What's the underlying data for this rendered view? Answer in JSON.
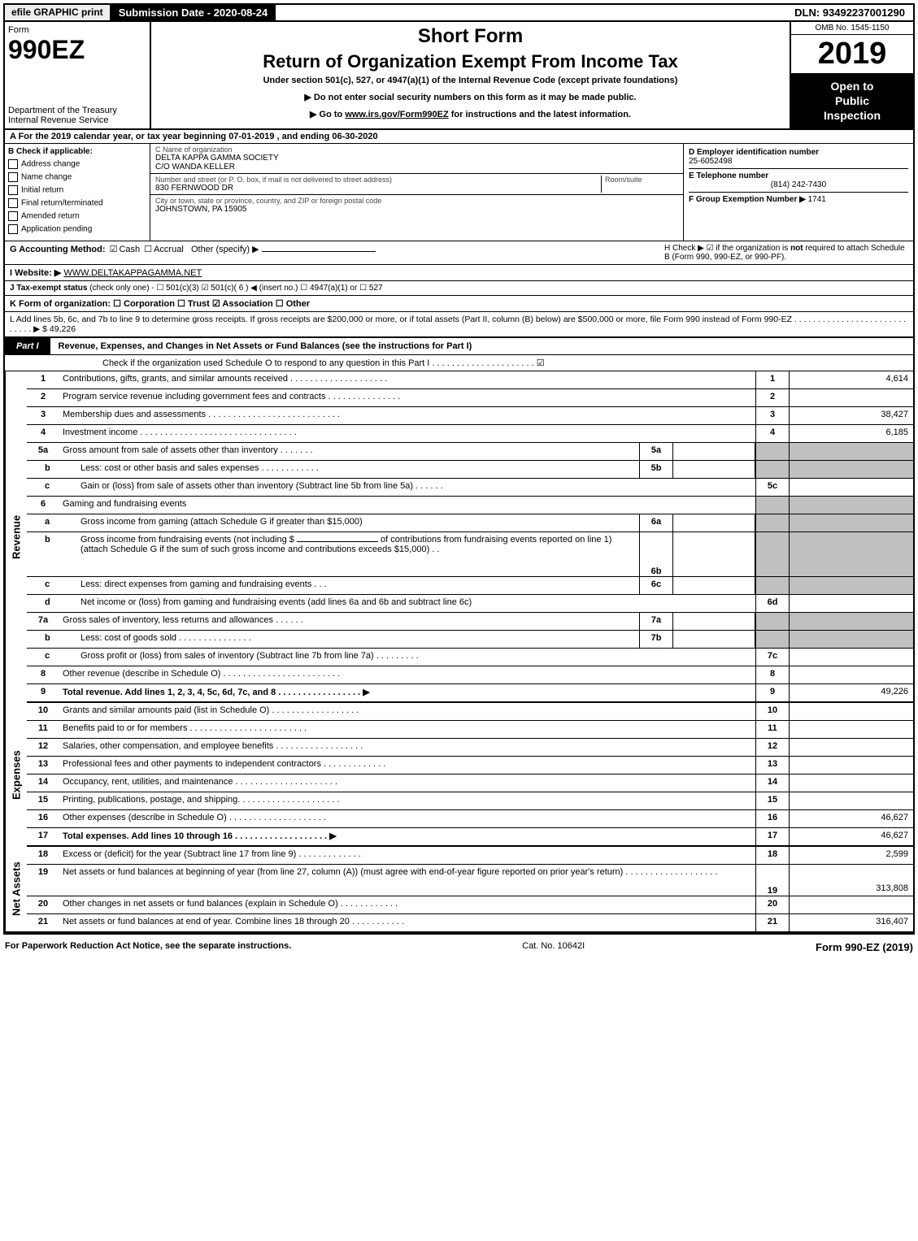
{
  "top": {
    "efile": "efile GRAPHIC print",
    "submission": "Submission Date - 2020-08-24",
    "dln": "DLN: 93492237001290"
  },
  "header": {
    "form_label": "Form",
    "form_number": "990EZ",
    "dept": "Department of the Treasury",
    "irs": "Internal Revenue Service",
    "title_short": "Short Form",
    "title_return": "Return of Organization Exempt From Income Tax",
    "under_section": "Under section 501(c), 527, or 4947(a)(1) of the Internal Revenue Code (except private foundations)",
    "instr1": "▶ Do not enter social security numbers on this form as it may be made public.",
    "instr2_prefix": "▶ Go to ",
    "instr2_link": "www.irs.gov/Form990EZ",
    "instr2_suffix": " for instructions and the latest information.",
    "omb": "OMB No. 1545-1150",
    "year": "2019",
    "open": "Open to",
    "public": "Public",
    "inspection": "Inspection"
  },
  "section_a": "A  For the 2019 calendar year, or tax year beginning 07-01-2019 , and ending 06-30-2020",
  "col_b": {
    "header": "B  Check if applicable:",
    "opts": [
      "Address change",
      "Name change",
      "Initial return",
      "Final return/terminated",
      "Amended return",
      "Application pending"
    ]
  },
  "col_c": {
    "name_lbl": "C Name of organization",
    "name1": "DELTA KAPPA GAMMA SOCIETY",
    "name2": "C/O WANDA KELLER",
    "street_lbl": "Number and street (or P. O. box, if mail is not delivered to street address)",
    "room_lbl": "Room/suite",
    "street": "830 FERNWOOD DR",
    "city_lbl": "City or town, state or province, country, and ZIP or foreign postal code",
    "city": "JOHNSTOWN, PA  15905"
  },
  "col_d": {
    "ein_lbl": "D Employer identification number",
    "ein": "25-6052498",
    "tel_lbl": "E Telephone number",
    "tel": "(814) 242-7430",
    "group_lbl": "F Group Exemption Number  ▶",
    "group": "1741"
  },
  "g": {
    "label": "G Accounting Method:",
    "cash": "Cash",
    "accrual": "Accrual",
    "other": "Other (specify) ▶"
  },
  "h": {
    "text1": "H  Check ▶ ☑  if the organization is ",
    "not": "not",
    "text2": " required to attach Schedule B (Form 990, 990-EZ, or 990-PF)."
  },
  "i": {
    "label": "I Website: ▶",
    "value": "WWW.DELTAKAPPAGAMMA.NET"
  },
  "j": {
    "label": "J Tax-exempt status",
    "rest": " (check only one) - ☐ 501(c)(3)  ☑ 501(c)( 6 ) ◀ (insert no.)  ☐ 4947(a)(1) or  ☐ 527"
  },
  "k": {
    "label": "K Form of organization:   ☐ Corporation    ☐ Trust    ☑ Association    ☐ Other",
    "underline": ""
  },
  "l": {
    "text": "L Add lines 5b, 6c, and 7b to line 9 to determine gross receipts. If gross receipts are $200,000 or more, or if total assets (Part II, column (B) below) are $500,000 or more, file Form 990 instead of Form 990-EZ   .   .   .   .   .   .   .   .   .   .   .   .   .   .   .   .   .   .   .   .   .   .   .   .   .   .   .   .   .   ▶ $ 49,226"
  },
  "part1": {
    "tab": "Part I",
    "title": "Revenue, Expenses, and Changes in Net Assets or Fund Balances (see the instructions for Part I)",
    "check": "Check if the organization used Schedule O to respond to any question in this Part I  .   .   .   .   .   .   .   .   .   .   .   .   .   .   .   .   .   .   .   .   .   ☑"
  },
  "sidebars": {
    "rev": "Revenue",
    "exp": "Expenses",
    "net": "Net Assets"
  },
  "rows": [
    {
      "n": "1",
      "desc": "Contributions, gifts, grants, and similar amounts received   .   .   .   .   .   .   .   .   .   .   .   .   .   .   .   .   .   .   .   .",
      "ln": "1",
      "val": "4,614"
    },
    {
      "n": "2",
      "desc": "Program service revenue including government fees and contracts    .   .   .   .   .   .   .   .   .   .   .   .   .   .   .",
      "ln": "2",
      "val": ""
    },
    {
      "n": "3",
      "desc": "Membership dues and assessments   .   .   .   .   .   .   .   .   .   .   .   .   .   .   .   .   .   .   .   .   .   .   .   .   .   .   .",
      "ln": "3",
      "val": "38,427"
    },
    {
      "n": "4",
      "desc": "Investment income  .   .   .   .   .   .   .   .   .   .   .   .   .   .   .   .   .   .   .   .   .   .   .   .   .   .   .   .   .   .   .   .",
      "ln": "4",
      "val": "6,185"
    }
  ],
  "inner_rows": [
    {
      "n": "5a",
      "desc": "Gross amount from sale of assets other than inventory   .   .   .   .   .   .   .",
      "iln": "5a"
    },
    {
      "n": "b",
      "sub": true,
      "desc": "Less: cost or other basis and sales expenses  .   .   .   .   .   .   .   .   .   .   .   .",
      "iln": "5b"
    }
  ],
  "row5c": {
    "n": "c",
    "sub": true,
    "desc": "Gain or (loss) from sale of assets other than inventory (Subtract line 5b from line 5a)   .   .   .   .   .   .",
    "ln": "5c",
    "val": ""
  },
  "row6": {
    "n": "6",
    "desc": "Gaming and fundraising events"
  },
  "row6a": {
    "n": "a",
    "sub": true,
    "desc": "Gross income from gaming (attach Schedule G if greater than $15,000)",
    "iln": "6a"
  },
  "row6b": {
    "n": "b",
    "sub": true,
    "desc1": "Gross income from fundraising events (not including $",
    "desc2": " of contributions from fundraising events reported on line 1) (attach Schedule G if the sum of such gross income and contributions exceeds $15,000)     .   .",
    "iln": "6b"
  },
  "row6c": {
    "n": "c",
    "sub": true,
    "desc": "Less: direct expenses from gaming and fundraising events       .   .   .",
    "iln": "6c"
  },
  "row6d": {
    "n": "d",
    "sub": true,
    "desc": "Net income or (loss) from gaming and fundraising events (add lines 6a and 6b and subtract line 6c)",
    "ln": "6d",
    "val": ""
  },
  "row7a": {
    "n": "7a",
    "desc": "Gross sales of inventory, less returns and allowances   .   .   .   .   .   .",
    "iln": "7a"
  },
  "row7b": {
    "n": "b",
    "sub": true,
    "desc": "Less: cost of goods sold         .   .   .   .   .   .   .   .   .   .   .   .   .   .   .",
    "iln": "7b"
  },
  "row7c": {
    "n": "c",
    "sub": true,
    "desc": "Gross profit or (loss) from sales of inventory (Subtract line 7b from line 7a)   .   .   .   .   .   .   .   .   .",
    "ln": "7c",
    "val": ""
  },
  "row8": {
    "n": "8",
    "desc": "Other revenue (describe in Schedule O) .   .   .   .   .   .   .   .   .   .   .   .   .   .   .   .   .   .   .   .   .   .   .   .",
    "ln": "8",
    "val": ""
  },
  "row9": {
    "n": "9",
    "desc": "Total revenue. Add lines 1, 2, 3, 4, 5c, 6d, 7c, and 8   .   .   .   .   .   .   .   .   .   .   .   .   .   .   .   .   .   ▶",
    "ln": "9",
    "val": "49,226",
    "bold": true
  },
  "exp_rows": [
    {
      "n": "10",
      "desc": "Grants and similar amounts paid (list in Schedule O)  .   .   .   .   .   .   .   .   .   .   .   .   .   .   .   .   .   .",
      "ln": "10",
      "val": ""
    },
    {
      "n": "11",
      "desc": "Benefits paid to or for members       .   .   .   .   .   .   .   .   .   .   .   .   .   .   .   .   .   .   .   .   .   .   .   .",
      "ln": "11",
      "val": ""
    },
    {
      "n": "12",
      "desc": "Salaries, other compensation, and employee benefits .   .   .   .   .   .   .   .   .   .   .   .   .   .   .   .   .   .",
      "ln": "12",
      "val": ""
    },
    {
      "n": "13",
      "desc": "Professional fees and other payments to independent contractors  .   .   .   .   .   .   .   .   .   .   .   .   .",
      "ln": "13",
      "val": ""
    },
    {
      "n": "14",
      "desc": "Occupancy, rent, utilities, and maintenance .   .   .   .   .   .   .   .   .   .   .   .   .   .   .   .   .   .   .   .   .",
      "ln": "14",
      "val": ""
    },
    {
      "n": "15",
      "desc": "Printing, publications, postage, and shipping.  .   .   .   .   .   .   .   .   .   .   .   .   .   .   .   .   .   .   .   .",
      "ln": "15",
      "val": ""
    },
    {
      "n": "16",
      "desc": "Other expenses (describe in Schedule O)       .   .   .   .   .   .   .   .   .   .   .   .   .   .   .   .   .   .   .   .",
      "ln": "16",
      "val": "46,627"
    },
    {
      "n": "17",
      "desc": "Total expenses. Add lines 10 through 16       .   .   .   .   .   .   .   .   .   .   .   .   .   .   .   .   .   .   .   ▶",
      "ln": "17",
      "val": "46,627",
      "bold": true
    }
  ],
  "net_rows": [
    {
      "n": "18",
      "desc": "Excess or (deficit) for the year (Subtract line 17 from line 9)          .   .   .   .   .   .   .   .   .   .   .   .   .",
      "ln": "18",
      "val": "2,599"
    },
    {
      "n": "19",
      "desc": "Net assets or fund balances at beginning of year (from line 27, column (A)) (must agree with end-of-year figure reported on prior year's return) .   .   .   .   .   .   .   .   .   .   .   .   .   .   .   .   .   .   .",
      "ln": "19",
      "val": "313,808",
      "tall": true
    },
    {
      "n": "20",
      "desc": "Other changes in net assets or fund balances (explain in Schedule O) .   .   .   .   .   .   .   .   .   .   .   .",
      "ln": "20",
      "val": ""
    },
    {
      "n": "21",
      "desc": "Net assets or fund balances at end of year. Combine lines 18 through 20 .   .   .   .   .   .   .   .   .   .   .",
      "ln": "21",
      "val": "316,407"
    }
  ],
  "footer": {
    "paperwork": "For Paperwork Reduction Act Notice, see the separate instructions.",
    "cat": "Cat. No. 10642I",
    "form": "Form ",
    "form_num": "990-EZ",
    "form_year": " (2019)"
  }
}
